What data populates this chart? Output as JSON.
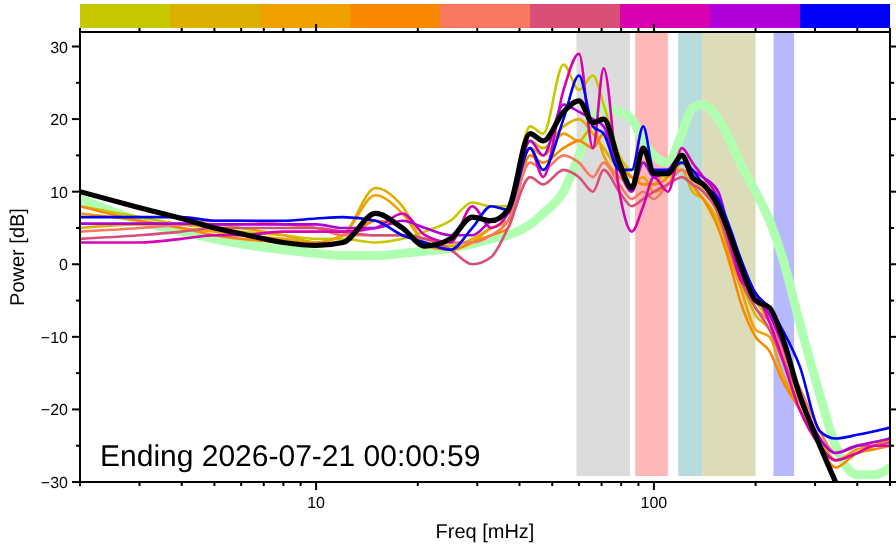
{
  "chart_data": {
    "type": "line",
    "xlabel": "Freq [mHz]",
    "ylabel": "Power [dB]",
    "log": "x",
    "grid": false,
    "line_style": "solid",
    "xlim": [
      2,
      500
    ],
    "ylim": [
      -30,
      32
    ],
    "xticks": [
      {
        "value": 2,
        "label": null
      },
      {
        "value": 3,
        "label": null
      },
      {
        "value": 4,
        "label": null
      },
      {
        "value": 5,
        "label": null
      },
      {
        "value": 6,
        "label": null
      },
      {
        "value": 7,
        "label": null
      },
      {
        "value": 8,
        "label": null
      },
      {
        "value": 9,
        "label": null
      },
      10,
      {
        "value": 20,
        "label": null
      },
      {
        "value": 30,
        "label": null
      },
      {
        "value": 40,
        "label": null
      },
      {
        "value": 50,
        "label": null
      },
      {
        "value": 60,
        "label": null
      },
      {
        "value": 70,
        "label": null
      },
      {
        "value": 80,
        "label": null
      },
      {
        "value": 90,
        "label": null
      },
      100,
      {
        "value": 200,
        "label": null
      },
      {
        "value": 300,
        "label": null
      },
      {
        "value": 400,
        "label": null
      },
      {
        "value": 500,
        "label": null
      }
    ],
    "yticks": [
      -30,
      {
        "value": -25,
        "label": null
      },
      -20,
      {
        "value": -15,
        "label": null
      },
      -10,
      {
        "value": -5,
        "label": null
      },
      0,
      {
        "value": 5,
        "label": null
      },
      10,
      {
        "value": 15,
        "label": null
      },
      20,
      {
        "value": 25,
        "label": null
      },
      30
    ],
    "x": [
      2,
      3,
      4,
      5,
      6,
      8,
      10,
      12,
      15,
      18,
      21,
      25,
      29,
      33,
      37,
      43,
      47,
      54,
      60,
      66,
      71,
      79,
      86,
      93,
      100,
      110,
      121,
      130,
      140,
      155,
      168,
      180,
      200,
      220,
      240,
      270,
      310,
      345,
      400,
      450,
      500
    ],
    "series": [
      {
        "color": "#b0ffb0",
        "values": [
          9,
          6,
          4.5,
          3.5,
          2.8,
          2,
          1.5,
          1.2,
          1.2,
          1.5,
          1.8,
          2.2,
          2.8,
          3.5,
          4,
          5.5,
          7,
          10,
          15,
          20,
          21.5,
          21,
          20,
          17,
          15,
          14,
          18,
          21.5,
          22,
          20,
          17,
          14,
          10,
          6,
          1,
          -8,
          -18,
          -25,
          -29,
          -29,
          -28
        ]
      },
      {
        "color": "#c8c800",
        "values": [
          8,
          6.5,
          5.5,
          5,
          4.5,
          4,
          3.5,
          3.5,
          3,
          3.5,
          4.5,
          6,
          8.5,
          8,
          8,
          19,
          18,
          27.5,
          24,
          26,
          22,
          15,
          13,
          14,
          13,
          12,
          14,
          12,
          10,
          9,
          3,
          -1,
          -5,
          -8,
          -12,
          -18,
          -24,
          -27,
          -26,
          -25,
          -24
        ]
      },
      {
        "color": "#dcb000",
        "values": [
          5,
          5.5,
          5.5,
          5.5,
          5,
          4,
          3,
          4,
          10.5,
          8,
          3,
          2.5,
          3.5,
          5,
          6,
          17,
          16,
          19,
          20,
          18,
          16,
          13,
          12,
          11,
          11,
          13,
          13,
          10,
          9,
          6,
          2,
          -2,
          -7,
          -9,
          -13,
          -19,
          -24,
          -27,
          -26,
          -25,
          -24
        ]
      },
      {
        "color": "#f0a000",
        "values": [
          7,
          6,
          5,
          4.5,
          4,
          3.5,
          3,
          4,
          9.5,
          7,
          3,
          2,
          3,
          5,
          6,
          16,
          15,
          18,
          17,
          19,
          15,
          12,
          11,
          12,
          10,
          11,
          14,
          12,
          10,
          7,
          1,
          -3,
          -9,
          -10,
          -15,
          -20,
          -25,
          -27,
          -25.5,
          -25,
          -24
        ]
      },
      {
        "color": "#f88800",
        "values": [
          8,
          6,
          5,
          4,
          3.5,
          3,
          2.5,
          3,
          6,
          5,
          2.5,
          2,
          3,
          4,
          5,
          15,
          14,
          16,
          17,
          16,
          18,
          14,
          12,
          11,
          11,
          12,
          15,
          11,
          9,
          5,
          0,
          -5,
          -10,
          -12,
          -16,
          -20,
          -25,
          -28,
          -26,
          -25.5,
          -25
        ]
      },
      {
        "color": "#f87860",
        "values": [
          4.5,
          5,
          5.5,
          6,
          6,
          5.5,
          5,
          4,
          4,
          4,
          3.5,
          3,
          3,
          4,
          6,
          14,
          13,
          15,
          14,
          12,
          14,
          11,
          9,
          10,
          9,
          11,
          13,
          12,
          11,
          8,
          3,
          -1,
          -6,
          -8,
          -12,
          -17,
          -23,
          -26,
          -25,
          -24.5,
          -24
        ]
      },
      {
        "color": "#d85078",
        "values": [
          3.5,
          4,
          4.5,
          5,
          5,
          5,
          5,
          4.5,
          4,
          4,
          3.5,
          2,
          0,
          1,
          5,
          12,
          11,
          13,
          12,
          10,
          13,
          10,
          8,
          9,
          10,
          11,
          12,
          11,
          10,
          7,
          2,
          -2,
          -6,
          -9,
          -13,
          -18,
          -24,
          -26,
          -25,
          -25,
          -24.5
        ]
      },
      {
        "color": "#d800b0",
        "values": [
          3,
          3,
          3.5,
          4,
          4,
          4.5,
          4.5,
          4.5,
          5,
          7,
          4,
          3,
          8,
          5,
          7,
          16,
          12,
          24,
          29,
          16,
          27,
          10,
          4.5,
          8,
          12,
          10,
          16,
          14,
          12,
          9,
          3,
          -2,
          -4,
          -8,
          -13,
          -20,
          -25,
          -27,
          -26,
          -25,
          -25
        ]
      },
      {
        "color": "#b000d8",
        "values": [
          5.6,
          5.6,
          5.6,
          5.5,
          5.5,
          5.5,
          5.5,
          5,
          5,
          6,
          5,
          4,
          4,
          6,
          7,
          17,
          15,
          22,
          21,
          20,
          19,
          13,
          10,
          14,
          12,
          13,
          15,
          13,
          12,
          10,
          4,
          -1,
          -4,
          -7,
          -11,
          -18,
          -24,
          -26,
          -25,
          -24.5,
          -24
        ]
      },
      {
        "color": "#0000f8",
        "values": [
          6.5,
          6.5,
          6.5,
          6,
          6,
          6,
          6.3,
          6.5,
          6,
          4,
          3,
          2,
          5,
          8,
          7.5,
          16,
          13,
          20,
          26,
          19,
          18,
          13,
          13,
          19,
          13,
          13,
          14,
          13,
          11,
          9,
          5,
          1,
          -4,
          -6,
          -9,
          -14,
          -23,
          -24,
          -23.5,
          -23,
          -22.5
        ]
      },
      {
        "color": "#000000",
        "values": [
          10,
          7.8,
          6.3,
          5,
          4.2,
          3,
          2.6,
          3,
          7,
          5,
          2.5,
          3.5,
          6.5,
          6,
          7.5,
          18,
          17,
          21,
          22.5,
          19.5,
          20,
          14,
          10.5,
          16,
          12.5,
          12.5,
          15,
          12,
          11,
          8,
          4,
          0,
          -5,
          -6,
          -10,
          -18,
          -25,
          -30,
          null,
          null,
          null
        ]
      }
    ],
    "bands": [
      {
        "axis": "x",
        "from": 59,
        "to": 85,
        "color": "#d8d8d8"
      },
      {
        "axis": "x",
        "from": 88,
        "to": 110,
        "color": "#ffb0b0"
      },
      {
        "axis": "x",
        "from": 118,
        "to": 139,
        "color": "#b0d8d8"
      },
      {
        "axis": "x",
        "from": 139,
        "to": 200,
        "color": "#d8d8b0"
      },
      {
        "axis": "x",
        "from": 226,
        "to": 260,
        "color": "#b0b0ff"
      }
    ],
    "annotations": [
      "Ending 2026-07-21 00:00:59"
    ]
  }
}
